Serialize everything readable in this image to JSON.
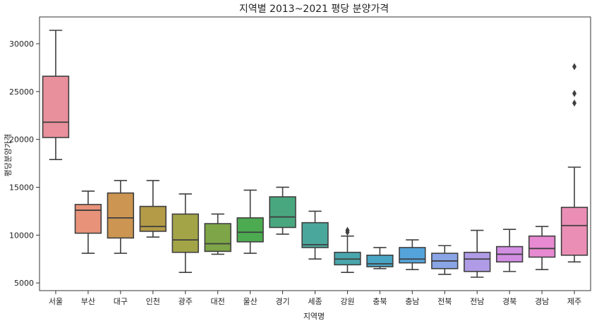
{
  "chart_data": {
    "type": "box",
    "title": "지역별 2013~2021 평당 분양가격",
    "xlabel": "지역명",
    "ylabel": "평당분양가격",
    "ylim": [
      4200,
      32800
    ],
    "yticks": [
      5000,
      10000,
      15000,
      20000,
      25000,
      30000
    ],
    "grid": false,
    "categories": [
      "서울",
      "부산",
      "대구",
      "인천",
      "광주",
      "대전",
      "울산",
      "경기",
      "세종",
      "강원",
      "충북",
      "충남",
      "전북",
      "전남",
      "경북",
      "경남",
      "제주"
    ],
    "colors": [
      "#e8909b",
      "#e8927a",
      "#cc9652",
      "#b39b48",
      "#a3a447",
      "#7ea547",
      "#4cab50",
      "#49a77f",
      "#4aa79b",
      "#4aa6ad",
      "#4aa5c4",
      "#54a4db",
      "#8aa5e5",
      "#b09ce6",
      "#d28ee3",
      "#e78ad1",
      "#eb8eb5"
    ],
    "boxes": [
      {
        "whislo": 17900,
        "q1": 20200,
        "med": 21800,
        "q3": 26600,
        "whishi": 31400,
        "fliers": []
      },
      {
        "whislo": 8100,
        "q1": 10200,
        "med": 12600,
        "q3": 13200,
        "whishi": 14600,
        "fliers": []
      },
      {
        "whislo": 8100,
        "q1": 9700,
        "med": 11800,
        "q3": 14400,
        "whishi": 15700,
        "fliers": []
      },
      {
        "whislo": 9800,
        "q1": 10400,
        "med": 10900,
        "q3": 13000,
        "whishi": 15700,
        "fliers": []
      },
      {
        "whislo": 6100,
        "q1": 8200,
        "med": 9500,
        "q3": 12200,
        "whishi": 14300,
        "fliers": []
      },
      {
        "whislo": 8000,
        "q1": 8300,
        "med": 9100,
        "q3": 11200,
        "whishi": 12200,
        "fliers": []
      },
      {
        "whislo": 8100,
        "q1": 9300,
        "med": 10300,
        "q3": 11800,
        "whishi": 14700,
        "fliers": []
      },
      {
        "whislo": 10100,
        "q1": 10800,
        "med": 11900,
        "q3": 14000,
        "whishi": 15000,
        "fliers": []
      },
      {
        "whislo": 7500,
        "q1": 8700,
        "med": 9000,
        "q3": 11300,
        "whishi": 12500,
        "fliers": []
      },
      {
        "whislo": 6100,
        "q1": 6900,
        "med": 7500,
        "q3": 8200,
        "whishi": 9900,
        "fliers": [
          10500,
          10300
        ]
      },
      {
        "whislo": 6500,
        "q1": 6700,
        "med": 7000,
        "q3": 7900,
        "whishi": 8700,
        "fliers": []
      },
      {
        "whislo": 6400,
        "q1": 7100,
        "med": 7500,
        "q3": 8700,
        "whishi": 9500,
        "fliers": []
      },
      {
        "whislo": 5900,
        "q1": 6500,
        "med": 7300,
        "q3": 8100,
        "whishi": 8900,
        "fliers": []
      },
      {
        "whislo": 5600,
        "q1": 6200,
        "med": 7500,
        "q3": 8200,
        "whishi": 10500,
        "fliers": []
      },
      {
        "whislo": 6200,
        "q1": 7200,
        "med": 8000,
        "q3": 8800,
        "whishi": 10600,
        "fliers": []
      },
      {
        "whislo": 6400,
        "q1": 7700,
        "med": 8600,
        "q3": 9900,
        "whishi": 10900,
        "fliers": []
      },
      {
        "whislo": 7200,
        "q1": 7900,
        "med": 11000,
        "q3": 12900,
        "whishi": 17100,
        "fliers": [
          23800,
          24800,
          27600
        ]
      }
    ]
  }
}
